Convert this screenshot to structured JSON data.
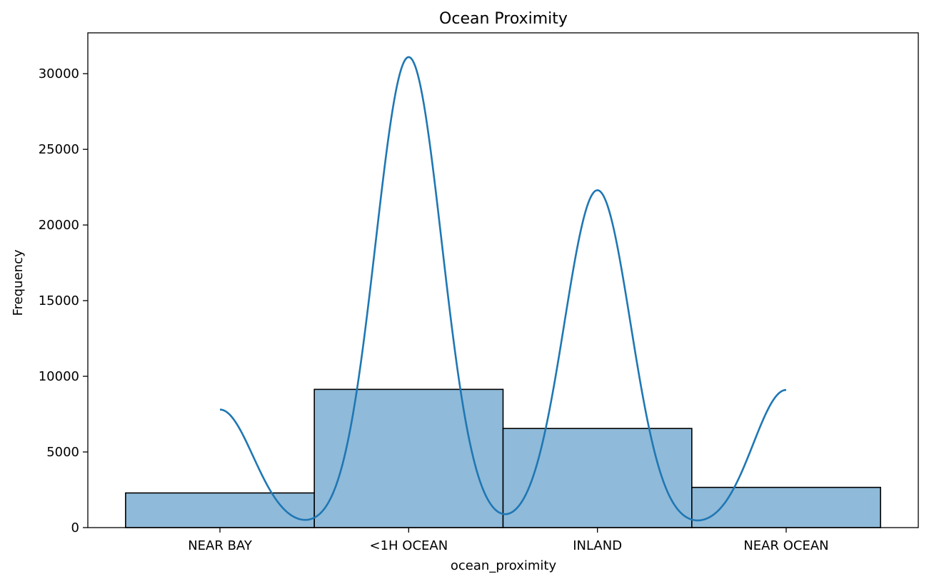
{
  "chart_data": {
    "type": "bar",
    "title": "Ocean Proximity",
    "xlabel": "ocean_proximity",
    "ylabel": "Frequency",
    "categories": [
      "NEAR BAY",
      "<1H OCEAN",
      "INLAND",
      "NEAR OCEAN"
    ],
    "values": [
      2290,
      9136,
      6551,
      2658
    ],
    "ylim": [
      0,
      32700
    ],
    "yticks": [
      0,
      5000,
      10000,
      15000,
      20000,
      25000,
      30000
    ],
    "ytick_labels": [
      "0",
      "5000",
      "10000",
      "15000",
      "20000",
      "25000",
      "30000"
    ],
    "kde": {
      "centers": [
        "NEAR BAY",
        "<1H OCEAN",
        "INLAND",
        "NEAR OCEAN"
      ],
      "peaks": [
        7800,
        31100,
        22300,
        9100
      ],
      "curve_start": "NEAR BAY",
      "curve_end": "NEAR OCEAN"
    },
    "colors": {
      "bar_fill": "#8fbad9",
      "bar_edge": "#000000",
      "kde_line": "#1f77b4"
    },
    "grid": false
  }
}
